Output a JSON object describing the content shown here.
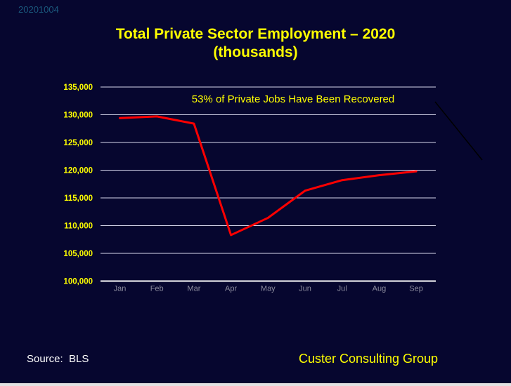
{
  "slide": {
    "timestamp": "20201004",
    "title_line1": "Total Private Sector Employment – 2020",
    "title_line2": "(thousands)",
    "annotation": "53% of Private Jobs Have Been Recovered",
    "source_label": "Source:  BLS",
    "footer_brand": "Custer Consulting Group"
  },
  "colors": {
    "background": "#06062f",
    "title": "#ffff00",
    "annotation": "#ffff00",
    "axis_label": "#ffff00",
    "month_label": "#8c8c9e",
    "gridline": "#d8d8ee",
    "axis_line": "#ffffff",
    "series": "#ff0000",
    "source": "#ffffff",
    "brand": "#ffff00",
    "timestamp": "#1b5a7e",
    "diagonal_line": "#000000",
    "bottom_strip": "#e2e2e2"
  },
  "chart_data": {
    "type": "line",
    "title": "Total Private Sector Employment – 2020 (thousands)",
    "annotation": "53% of Private Jobs Have Been Recovered",
    "categories": [
      "Jan",
      "Feb",
      "Mar",
      "Apr",
      "May",
      "Jun",
      "Jul",
      "Aug",
      "Sep"
    ],
    "series": [
      {
        "name": "Total private sector employment (thousands)",
        "values": [
          129400,
          129700,
          128400,
          108300,
          111400,
          116300,
          118200,
          119100,
          119800
        ]
      }
    ],
    "xlabel": "",
    "ylabel": "",
    "ylim": [
      100000,
      135000
    ],
    "ytick_step": 5000,
    "yticks": [
      "135,000",
      "130,000",
      "125,000",
      "120,000",
      "115,000",
      "110,000",
      "105,000",
      "100,000"
    ],
    "grid": true,
    "legend_position": "none"
  }
}
